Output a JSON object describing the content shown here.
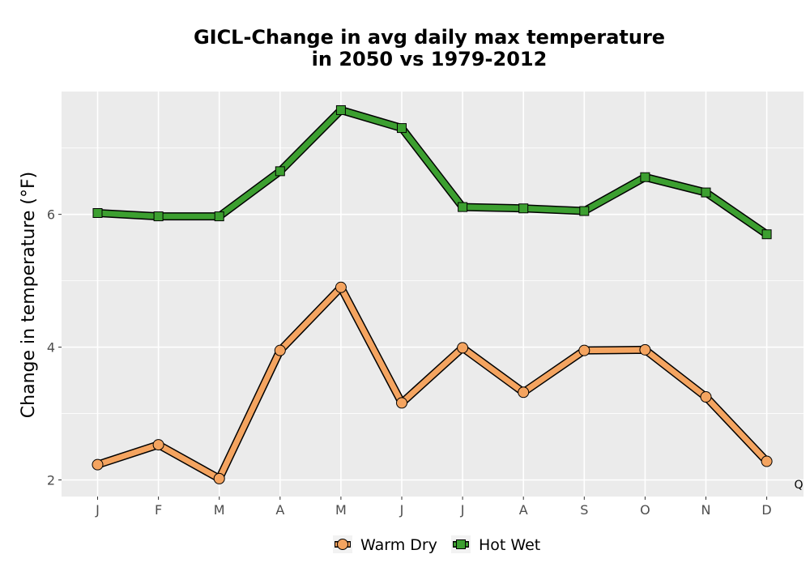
{
  "chart_data": {
    "type": "line",
    "title_lines": [
      "GICL-Change in avg daily max temperature",
      "in 2050 vs 1979-2012"
    ],
    "xlabel": "",
    "ylabel": "Change in temperature (°F)",
    "categories": [
      "J",
      "F",
      "M",
      "A",
      "M",
      "J",
      "J",
      "A",
      "S",
      "O",
      "N",
      "D"
    ],
    "ylim": [
      1.75,
      7.85
    ],
    "yticks": [
      2,
      4,
      6
    ],
    "grid": true,
    "legend_position": "bottom",
    "corner_label": "Q",
    "series": [
      {
        "name": "Warm Dry",
        "marker": "circle",
        "color": "#f4a460",
        "values": [
          2.23,
          2.53,
          2.02,
          3.95,
          4.9,
          3.16,
          3.99,
          3.32,
          3.95,
          3.96,
          3.25,
          2.28
        ]
      },
      {
        "name": "Hot Wet",
        "marker": "square",
        "color": "#3c9f30",
        "values": [
          6.02,
          5.97,
          5.97,
          6.65,
          7.57,
          7.3,
          6.11,
          6.09,
          6.05,
          6.56,
          6.33,
          5.7
        ]
      }
    ]
  }
}
